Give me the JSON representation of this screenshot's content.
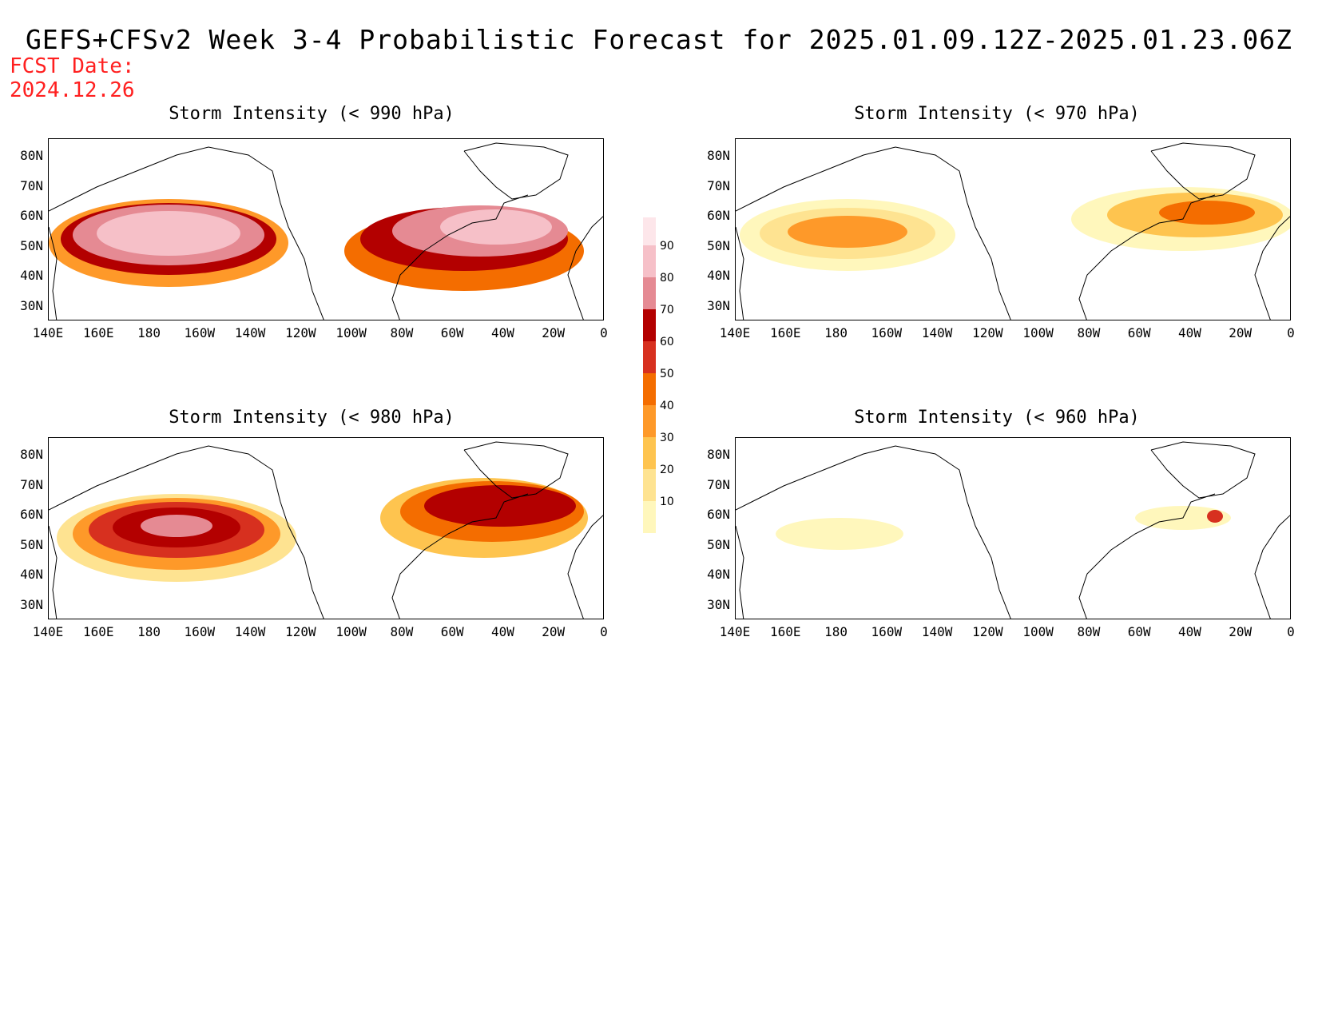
{
  "title": "GEFS+CFSv2 Week 3-4 Probabilistic Forecast for 2025.01.09.12Z-2025.01.23.06Z",
  "fcst_date_label": "FCST Date:",
  "fcst_date_value": "2024.12.26",
  "panels": [
    {
      "title": "Storm Intensity (< 990 hPa)",
      "level": 4
    },
    {
      "title": "Storm Intensity (< 970 hPa)",
      "level": 2
    },
    {
      "title": "Storm Intensity (< 980 hPa)",
      "level": 3
    },
    {
      "title": "Storm Intensity (< 960 hPa)",
      "level": 1
    }
  ],
  "lat_labels": [
    "80N",
    "70N",
    "60N",
    "50N",
    "40N",
    "30N"
  ],
  "lon_labels": [
    "140E",
    "160E",
    "180",
    "160W",
    "140W",
    "120W",
    "100W",
    "80W",
    "60W",
    "40W",
    "20W",
    "0"
  ],
  "colorbar": {
    "labels": [
      "10",
      "20",
      "30",
      "40",
      "50",
      "60",
      "70",
      "80",
      "90"
    ],
    "colors": [
      "#fff7bc",
      "#fee391",
      "#fec44f",
      "#fe9929",
      "#f46d00",
      "#d7301f",
      "#b30000",
      "#e58a93",
      "#f6c0c8",
      "#fde6ea"
    ]
  }
}
